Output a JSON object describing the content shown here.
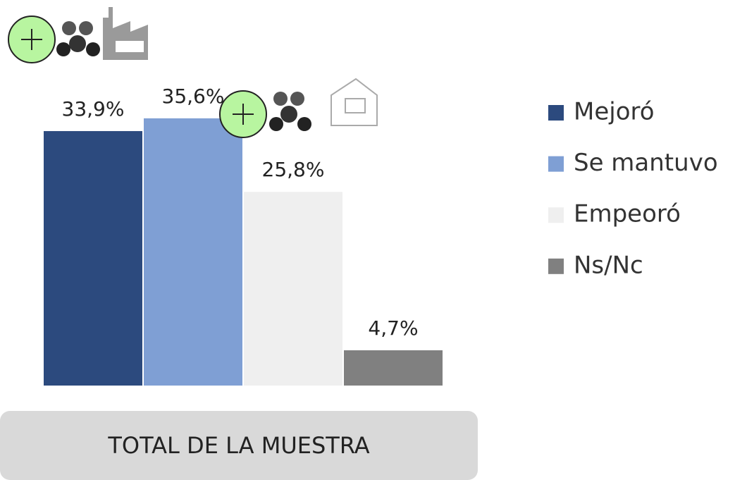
{
  "chart_data": {
    "type": "bar",
    "categories": [
      "TOTAL DE LA MUESTRA"
    ],
    "series": [
      {
        "name": "Mejoró",
        "color": "#2c4a7e",
        "values": [
          33.9
        ],
        "value_labels": [
          "33,9%"
        ]
      },
      {
        "name": "Se mantuvo",
        "color": "#7f9fd4",
        "values": [
          35.6
        ],
        "value_labels": [
          "35,6%"
        ]
      },
      {
        "name": "Empeoró",
        "color": "#efefef",
        "values": [
          25.8
        ],
        "value_labels": [
          "25,8%"
        ]
      },
      {
        "name": "Ns/Nc",
        "color": "#808080",
        "values": [
          4.7
        ],
        "value_labels": [
          "4,7%"
        ]
      }
    ]
  }
}
